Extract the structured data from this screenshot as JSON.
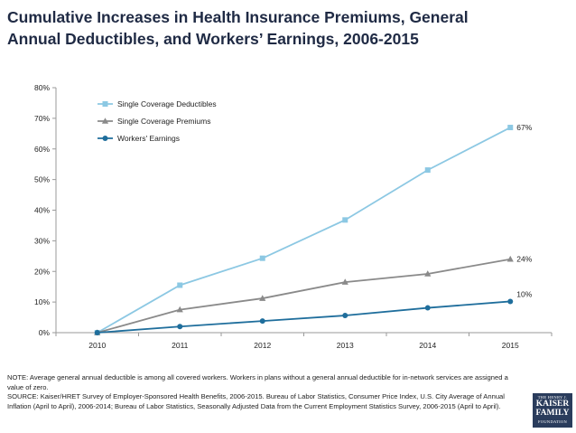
{
  "header": {
    "title_line1": "Cumulative Increases in Health Insurance Premiums, General",
    "title_line2": "Annual Deductibles, and Workers’ Earnings, 2006-2015"
  },
  "chart_data": {
    "type": "line",
    "x": [
      "2010",
      "2011",
      "2012",
      "2013",
      "2014",
      "2015"
    ],
    "ylim": [
      0,
      80
    ],
    "y_ticks": [
      "0%",
      "10%",
      "20%",
      "30%",
      "40%",
      "50%",
      "60%",
      "70%",
      "80%"
    ],
    "y_tick_values": [
      0,
      10,
      20,
      30,
      40,
      50,
      60,
      70,
      80
    ],
    "legend_position": "top-left",
    "series": [
      {
        "name": "Single Coverage Deductibles",
        "values": [
          0,
          15.5,
          24.3,
          36.8,
          53.1,
          67
        ],
        "color": "#8cc8e3",
        "marker": "square",
        "end_label": "67%"
      },
      {
        "name": "Single Coverage Premiums",
        "values": [
          0,
          7.5,
          11.2,
          16.5,
          19.2,
          24
        ],
        "color": "#8a8a8a",
        "marker": "triangle",
        "end_label": "24%"
      },
      {
        "name": "Workers' Earnings",
        "values": [
          0,
          2.0,
          3.8,
          5.6,
          8.1,
          10.2
        ],
        "color": "#1f6e9c",
        "marker": "circle",
        "end_label": "10%"
      }
    ]
  },
  "footer": {
    "note": "NOTE:  Average general annual deductible  is among  all covered workers. Workers in plans without a general annual deductible for in-network services are assigned a value of zero.",
    "source": "SOURCE:  Kaiser/HRET Survey of Employer-Sponsored Health Benefits, 2006-2015.  Bureau of Labor Statistics, Consumer Price Index, U.S. City Average of Annual Inflation (April to April), 2006-2014; Bureau of Labor Statistics, Seasonally Adjusted Data from the Current Employment Statistics Survey, 2006-2015 (April to April)."
  },
  "logo": {
    "line1": "THE HENRY J.",
    "line2": "KAISER",
    "line3": "FAMILY",
    "line4": "FOUNDATION"
  }
}
